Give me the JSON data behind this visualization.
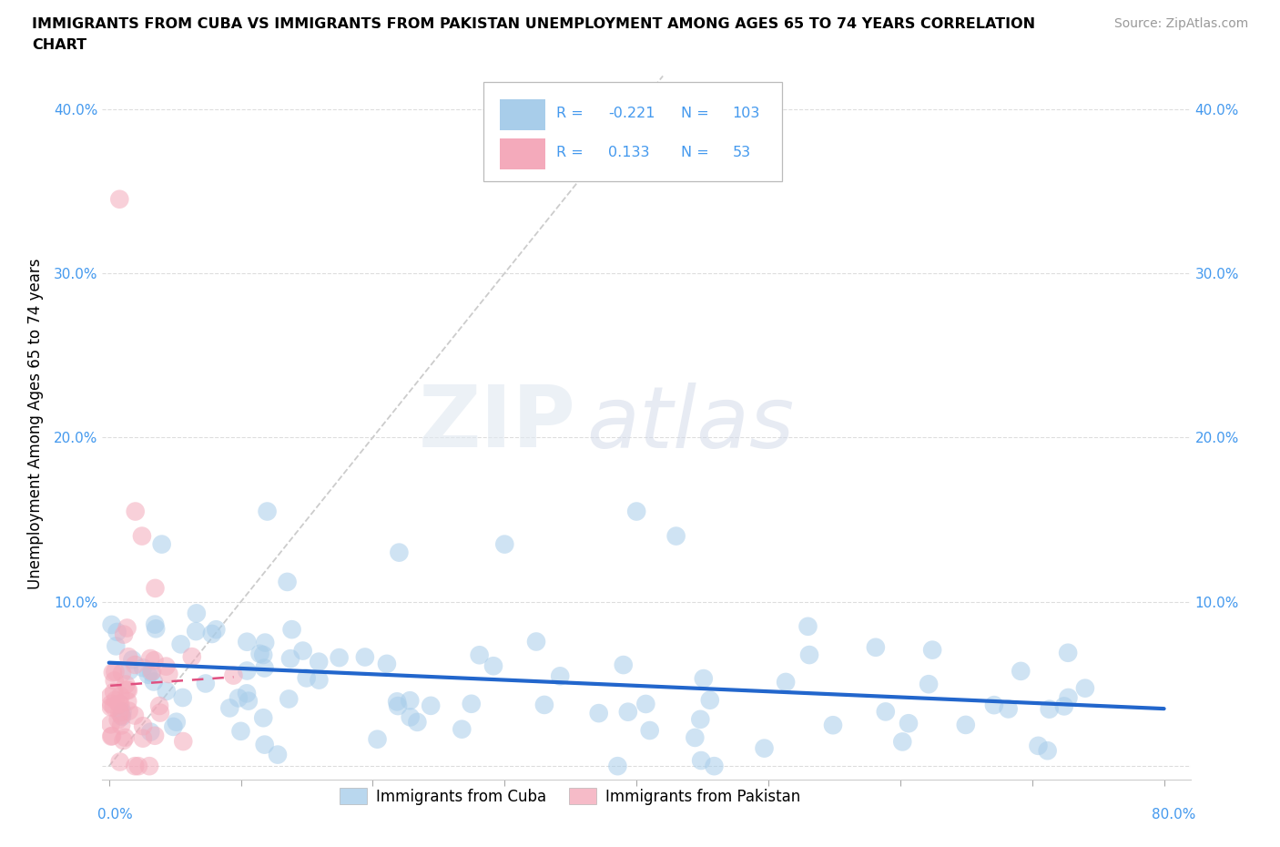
{
  "title_line1": "IMMIGRANTS FROM CUBA VS IMMIGRANTS FROM PAKISTAN UNEMPLOYMENT AMONG AGES 65 TO 74 YEARS CORRELATION",
  "title_line2": "CHART",
  "source_text": "Source: ZipAtlas.com",
  "ylabel": "Unemployment Among Ages 65 to 74 years",
  "xlim": [
    -0.005,
    0.82
  ],
  "ylim": [
    -0.008,
    0.425
  ],
  "cuba_color": "#A8CDEA",
  "pakistan_color": "#F4AABB",
  "cuba_line_color": "#2266CC",
  "pakistan_line_color": "#E05080",
  "diag_line_color": "#CCCCCC",
  "label_color": "#4499EE",
  "val_color": "#4499EE",
  "r_cuba": -0.221,
  "n_cuba": 103,
  "r_pakistan": 0.133,
  "n_pakistan": 53,
  "watermark_zip": "ZIP",
  "watermark_atlas": "atlas",
  "cuba_label": "Immigrants from Cuba",
  "pakistan_label": "Immigrants from Pakistan",
  "ytick_vals": [
    0.0,
    0.1,
    0.2,
    0.3,
    0.4
  ],
  "ytick_labs": [
    "",
    "10.0%",
    "20.0%",
    "30.0%",
    "40.0%"
  ],
  "xtick_vals": [
    0.0,
    0.1,
    0.2,
    0.3,
    0.4,
    0.5,
    0.6,
    0.7,
    0.8
  ]
}
